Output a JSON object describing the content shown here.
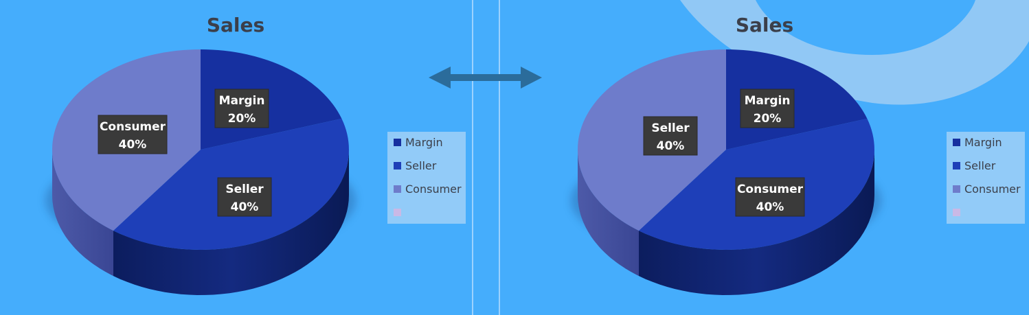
{
  "colors": {
    "background": "#45adfc",
    "legend_bg": "#92cbf8",
    "divider": "#d7ebff",
    "arrow": "#2b6c9b",
    "label_box": "#3a3a3a"
  },
  "arrow": {
    "icon": "double-headed-arrow-icon"
  },
  "chart_data": [
    {
      "type": "pie",
      "title": "Sales",
      "legend_position": "right",
      "legend": [
        "Margin",
        "Seller",
        "Consumer",
        ""
      ],
      "slices": [
        {
          "name": "Margin",
          "value": 20,
          "label_name": "Margin",
          "label_pct": "20%",
          "color": "#1630a0"
        },
        {
          "name": "Seller",
          "value": 40,
          "label_name": "Seller",
          "label_pct": "40%",
          "color": "#1e3fb8"
        },
        {
          "name": "Consumer",
          "value": 40,
          "label_name": "Consumer",
          "label_pct": "40%",
          "color": "#6e7ccb"
        }
      ]
    },
    {
      "type": "pie",
      "title": "Sales",
      "legend_position": "right",
      "legend": [
        "Margin",
        "Seller",
        "Consumer",
        ""
      ],
      "slices": [
        {
          "name": "Margin",
          "value": 20,
          "label_name": "Margin",
          "label_pct": "20%",
          "color": "#1630a0"
        },
        {
          "name": "Consumer",
          "value": 40,
          "label_name": "Consumer",
          "label_pct": "40%",
          "color": "#1e3fb8"
        },
        {
          "name": "Seller",
          "value": 40,
          "label_name": "Seller",
          "label_pct": "40%",
          "color": "#6e7ccb"
        }
      ]
    }
  ],
  "legend_colors": [
    "#1630a0",
    "#1e3fb8",
    "#6e7ccb",
    "#c9b9e6"
  ]
}
